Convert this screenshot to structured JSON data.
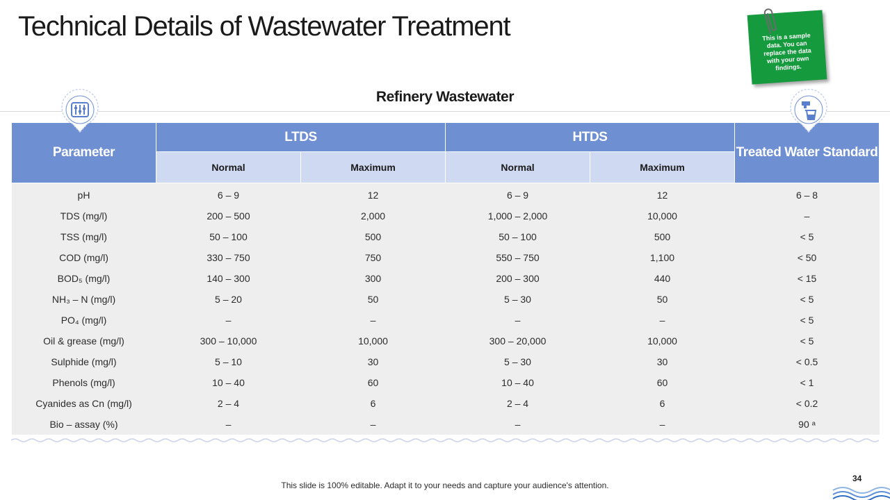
{
  "title": "Technical Details of Wastewater Treatment",
  "subtitle": "Refinery Wastewater",
  "note": "This is a sample data. You can replace the data with your own findings.",
  "table": {
    "parameter_header": "Parameter",
    "groups": [
      "LTDS",
      "HTDS"
    ],
    "treated_header": "Treated Water Standard",
    "subheaders": [
      "Normal",
      "Maximum",
      "Normal",
      "Maximum"
    ],
    "rows": [
      [
        "pH",
        "6 – 9",
        "12",
        "6 – 9",
        "12",
        "6 – 8"
      ],
      [
        "TDS (mg/l)",
        "200 – 500",
        "2,000",
        "1,000 – 2,000",
        "10,000",
        "–"
      ],
      [
        "TSS (mg/l)",
        "50 – 100",
        "500",
        "50 – 100",
        "500",
        "< 5"
      ],
      [
        "COD (mg/l)",
        "330 – 750",
        "750",
        "550 – 750",
        "1,100",
        "< 50"
      ],
      [
        "BOD₅ (mg/l)",
        "140 – 300",
        "300",
        "200 – 300",
        "440",
        "< 15"
      ],
      [
        "NH₃ – N (mg/l)",
        "5 – 20",
        "50",
        "5 – 30",
        "50",
        "< 5"
      ],
      [
        "PO₄ (mg/l)",
        "–",
        "–",
        "–",
        "–",
        "< 5"
      ],
      [
        "Oil & grease  (mg/l)",
        "300 – 10,000",
        "10,000",
        "300 – 20,000",
        "10,000",
        "< 5"
      ],
      [
        "Sulphide (mg/l)",
        "5 – 10",
        "30",
        "5 – 30",
        "30",
        "< 0.5"
      ],
      [
        "Phenols (mg/l)",
        "10 – 40",
        "60",
        "10 – 40",
        "60",
        "< 1"
      ],
      [
        "Cyanides as Cn (mg/l)",
        "2 – 4",
        "6",
        "2 – 4",
        "6",
        "< 0.2"
      ],
      [
        "Bio – assay (%)",
        "–",
        "–",
        "–",
        "–",
        "90 ᵃ"
      ]
    ]
  },
  "footer": "This slide is 100% editable. Adapt it to your needs and capture your audience's attention.",
  "page_number": "34",
  "colors": {
    "header_blue": "#6f8fd3",
    "subheader_blue": "#cfd9f1",
    "body_gray": "#eeeeee",
    "note_green": "#159a3e"
  },
  "icons": [
    "equalizer-icon",
    "water-tap-glass-icon",
    "paperclip-icon"
  ]
}
